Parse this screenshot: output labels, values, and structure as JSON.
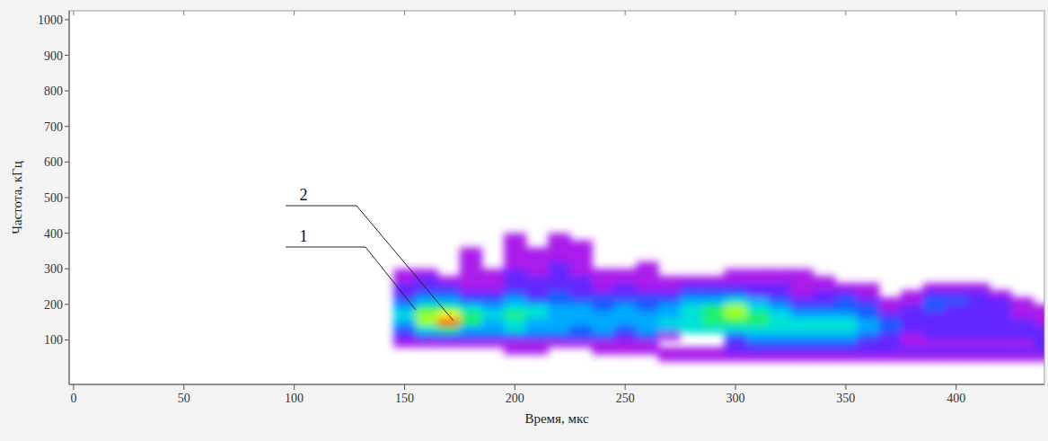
{
  "chart_data": {
    "type": "heatmap",
    "x_label": "Время, мкс",
    "y_label": "Частота, кГц",
    "xlim": [
      -2,
      440
    ],
    "ylim": [
      -25,
      1025
    ],
    "xticks": [
      0,
      50,
      100,
      150,
      200,
      250,
      300,
      350,
      400
    ],
    "yticks": [
      100,
      200,
      300,
      400,
      500,
      600,
      700,
      800,
      900,
      1000
    ],
    "grid": false,
    "zlim": [
      0,
      10
    ],
    "x": [
      150,
      160,
      170,
      180,
      190,
      200,
      210,
      220,
      230,
      240,
      250,
      260,
      270,
      280,
      290,
      300,
      310,
      320,
      330,
      340,
      350,
      360,
      370,
      380,
      390,
      400,
      410,
      420,
      430,
      440
    ],
    "y": [
      390,
      370,
      350,
      330,
      310,
      290,
      270,
      250,
      230,
      210,
      190,
      170,
      150,
      130,
      110,
      90,
      70,
      50
    ],
    "values": [
      [
        0,
        0,
        0,
        0,
        0,
        1,
        0,
        1,
        0,
        0,
        0,
        0,
        0,
        0,
        0,
        0,
        0,
        0,
        0,
        0,
        0,
        0,
        0,
        0,
        0,
        0,
        0,
        0,
        0,
        0
      ],
      [
        0,
        0,
        0,
        0,
        0,
        1,
        0,
        1,
        1,
        0,
        0,
        0,
        0,
        0,
        0,
        0,
        0,
        0,
        0,
        0,
        0,
        0,
        0,
        0,
        0,
        0,
        0,
        0,
        0,
        0
      ],
      [
        0,
        0,
        0,
        1,
        0,
        1,
        1,
        1,
        1,
        0,
        0,
        0,
        0,
        0,
        0,
        0,
        0,
        0,
        0,
        0,
        0,
        0,
        0,
        0,
        0,
        0,
        0,
        0,
        0,
        0
      ],
      [
        0,
        0,
        0,
        1,
        0,
        1,
        1,
        1,
        1,
        0,
        0,
        0,
        0,
        0,
        0,
        0,
        0,
        0,
        0,
        0,
        0,
        0,
        0,
        0,
        0,
        0,
        0,
        0,
        0,
        0
      ],
      [
        0,
        0,
        0,
        1,
        0,
        1,
        1,
        2,
        1,
        0,
        0,
        1,
        0,
        0,
        0,
        0,
        0,
        0,
        0,
        0,
        0,
        0,
        0,
        0,
        0,
        0,
        0,
        0,
        0,
        0
      ],
      [
        1,
        1,
        0,
        1,
        1,
        2,
        1,
        2,
        1,
        1,
        1,
        1,
        0,
        0,
        0,
        1,
        1,
        1,
        1,
        0,
        0,
        0,
        0,
        0,
        0,
        0,
        0,
        0,
        0,
        0
      ],
      [
        1,
        2,
        1,
        1,
        1,
        2,
        2,
        2,
        2,
        1,
        1,
        1,
        1,
        1,
        1,
        1,
        1,
        1,
        1,
        1,
        0,
        0,
        0,
        0,
        0,
        0,
        0,
        0,
        0,
        0
      ],
      [
        2,
        2,
        2,
        1,
        1,
        2,
        2,
        2,
        2,
        1,
        2,
        1,
        1,
        2,
        2,
        2,
        2,
        2,
        1,
        1,
        1,
        1,
        0,
        0,
        1,
        1,
        1,
        0,
        0,
        0
      ],
      [
        2,
        3,
        3,
        2,
        2,
        3,
        2,
        3,
        2,
        2,
        2,
        2,
        2,
        3,
        3,
        3,
        2,
        2,
        1,
        2,
        2,
        1,
        0,
        1,
        2,
        2,
        2,
        1,
        0,
        0
      ],
      [
        3,
        4,
        4,
        3,
        3,
        4,
        3,
        3,
        3,
        3,
        3,
        3,
        3,
        4,
        4,
        5,
        4,
        3,
        2,
        2,
        3,
        2,
        1,
        1,
        3,
        3,
        2,
        2,
        1,
        0
      ],
      [
        4,
        6,
        6,
        5,
        4,
        5,
        5,
        4,
        4,
        3,
        4,
        3,
        4,
        5,
        6,
        7,
        5,
        4,
        3,
        3,
        3,
        3,
        1,
        2,
        3,
        2,
        2,
        2,
        1,
        1
      ],
      [
        5,
        7,
        8,
        6,
        5,
        6,
        5,
        4,
        4,
        4,
        4,
        4,
        4,
        5,
        6,
        7,
        6,
        5,
        4,
        4,
        4,
        3,
        2,
        2,
        2,
        2,
        2,
        2,
        1,
        1
      ],
      [
        4,
        7,
        10,
        6,
        4,
        5,
        4,
        4,
        4,
        4,
        4,
        4,
        5,
        5,
        6,
        6,
        6,
        5,
        5,
        5,
        5,
        4,
        3,
        2,
        2,
        2,
        2,
        2,
        2,
        1
      ],
      [
        3,
        5,
        6,
        4,
        4,
        5,
        4,
        4,
        3,
        4,
        3,
        4,
        4,
        5,
        5,
        5,
        5,
        5,
        5,
        5,
        5,
        4,
        3,
        2,
        2,
        2,
        2,
        2,
        2,
        2
      ],
      [
        2,
        3,
        3,
        3,
        3,
        3,
        3,
        3,
        3,
        3,
        2,
        3,
        1,
        0,
        0,
        3,
        4,
        4,
        4,
        4,
        4,
        3,
        2,
        1,
        2,
        2,
        2,
        2,
        2,
        2
      ],
      [
        1,
        1,
        1,
        1,
        1,
        1,
        1,
        1,
        1,
        1,
        1,
        1,
        0,
        0,
        0,
        2,
        3,
        3,
        3,
        3,
        3,
        2,
        2,
        1,
        1,
        1,
        1,
        1,
        1,
        2
      ],
      [
        0,
        0,
        0,
        0,
        0,
        1,
        1,
        0,
        0,
        1,
        1,
        1,
        1,
        1,
        1,
        2,
        2,
        2,
        2,
        2,
        2,
        2,
        2,
        2,
        2,
        2,
        2,
        2,
        2,
        2
      ],
      [
        0,
        0,
        0,
        0,
        0,
        0,
        0,
        0,
        0,
        0,
        0,
        0,
        1,
        1,
        1,
        1,
        1,
        1,
        1,
        1,
        1,
        1,
        1,
        1,
        1,
        1,
        1,
        1,
        1,
        1
      ]
    ],
    "annotations": [
      {
        "text": "1",
        "x": 155,
        "y": 185
      },
      {
        "text": "2",
        "x": 172,
        "y": 155
      }
    ]
  }
}
